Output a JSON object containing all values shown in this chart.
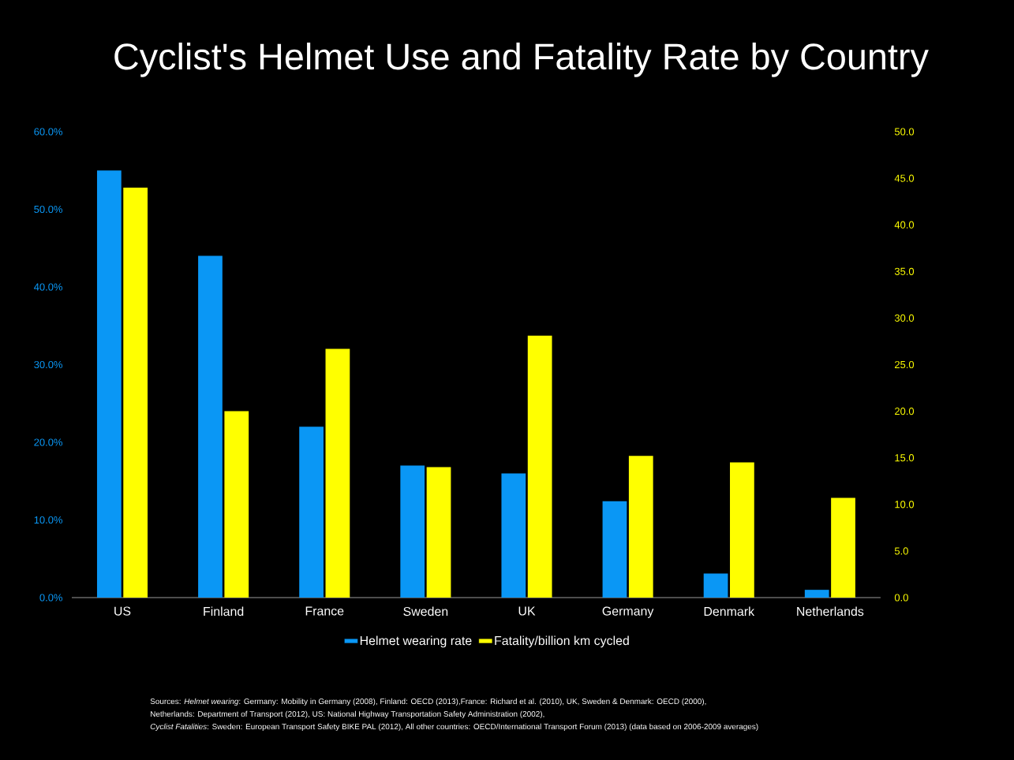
{
  "chart_data": {
    "type": "bar",
    "title": "Cyclist's Helmet Use and Fatality Rate by Country",
    "categories": [
      "US",
      "Finland",
      "France",
      "Sweden",
      "UK",
      "Germany",
      "Denmark",
      "Netherlands"
    ],
    "series": [
      {
        "name": "Helmet wearing rate",
        "color": "#0a97f5",
        "values": [
          55,
          44,
          22,
          17,
          16,
          12.4,
          3.1,
          1.0
        ]
      },
      {
        "name": "Fatality/billion km cycled",
        "color": "#ffff00",
        "axis": "y2",
        "values": [
          44.0,
          20.0,
          26.7,
          14.0,
          28.1,
          15.2,
          14.5,
          10.7
        ]
      }
    ],
    "ylim": [
      0,
      60
    ],
    "yticks": [
      {
        "value": 0,
        "label": "0.0%"
      },
      {
        "value": 10,
        "label": "10.0%"
      },
      {
        "value": 20,
        "label": "20.0%"
      },
      {
        "value": 30,
        "label": "30.0%"
      },
      {
        "value": 40,
        "label": "40.0%"
      },
      {
        "value": 50,
        "label": "50.0%"
      },
      {
        "value": 60,
        "label": "60.0%"
      }
    ],
    "y2lim": [
      0,
      50
    ],
    "y2ticks": [
      {
        "value": 0,
        "label": "0.0"
      },
      {
        "value": 5,
        "label": "5.0"
      },
      {
        "value": 10,
        "label": "10.0"
      },
      {
        "value": 15,
        "label": "15.0"
      },
      {
        "value": 20,
        "label": "20.0"
      },
      {
        "value": 25,
        "label": "25.0"
      },
      {
        "value": 30,
        "label": "30.0"
      },
      {
        "value": 35,
        "label": "35.0"
      },
      {
        "value": 40,
        "label": "40.0"
      },
      {
        "value": 45,
        "label": "45.0"
      },
      {
        "value": 50,
        "label": "50.0"
      }
    ],
    "legend": "bottom",
    "grid": false,
    "annotations": [
      "Sources: *Helmet wearing*: Germany: Mobility in Germany (2008), Finland: OECD (2013),France: Richard et al. (2010), UK, Sweden & Denmark: OECD (2000),",
      "Netherlands: Department of Transport (2012), US: National Highway Transportation Safety Administration (2002),",
      "*Cyclist Fatalities*: Sweden: European Transport Safety BIKE PAL (2012), All other countries: OECD/International Transport Forum (2013) (data based on 2006-2009 averages)"
    ]
  }
}
